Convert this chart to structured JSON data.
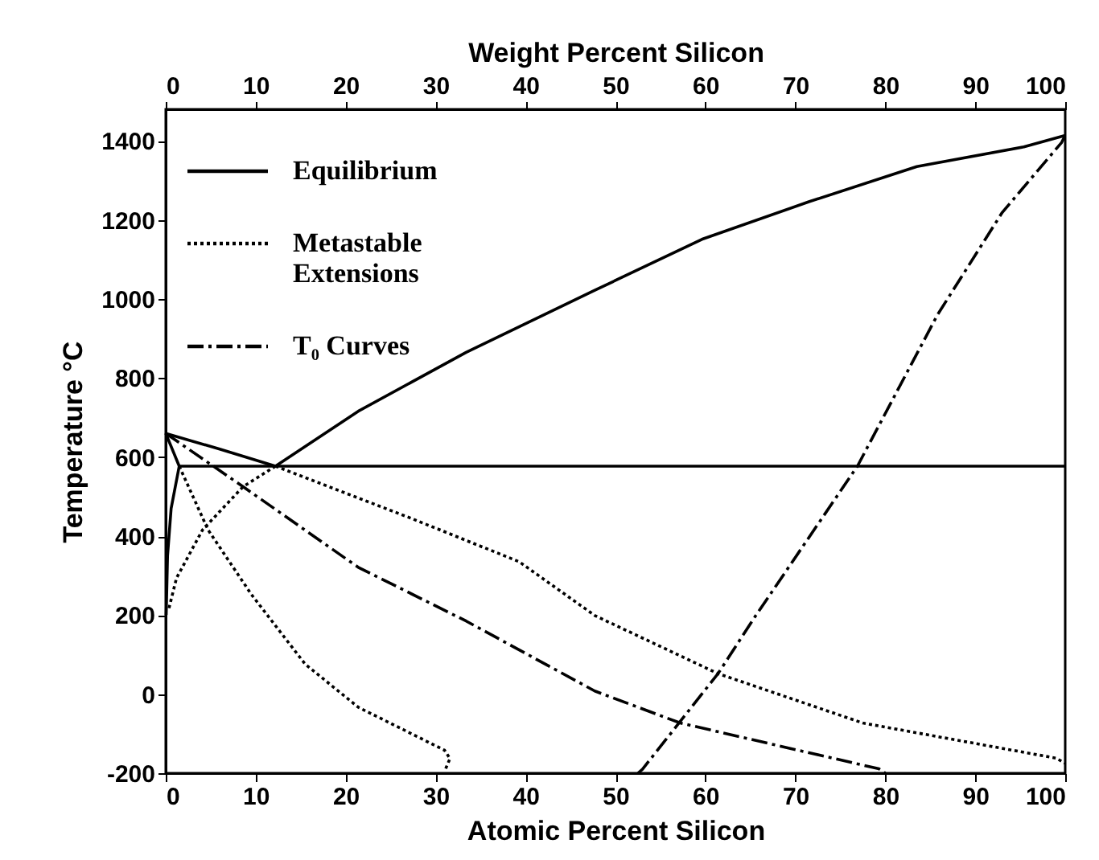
{
  "chart_data": {
    "type": "line",
    "xlabel": "Atomic Percent Silicon",
    "ylabel": "Temperature °C",
    "x2label": "Weight Percent Silicon",
    "xlim": [
      0,
      100
    ],
    "xticks": [
      0,
      10,
      20,
      30,
      40,
      50,
      60,
      70,
      80,
      90,
      100
    ],
    "x2lim": [
      0,
      100
    ],
    "x2ticks": [
      0,
      10,
      20,
      30,
      40,
      50,
      60,
      70,
      80,
      90,
      100
    ],
    "ylim": [
      -200,
      1480
    ],
    "yticks": [
      -200,
      0,
      200,
      400,
      600,
      800,
      {
        "value": 1000,
        "label": "1000"
      },
      {
        "value": 1200,
        "label": "1200"
      },
      {
        "value": 1400,
        "label": "1400"
      }
    ],
    "grid": false,
    "legend": "top left",
    "marker": "none",
    "series": [
      {
        "name": "Equilibrium",
        "color": "#000000",
        "line_style": "solid",
        "x": [
          0,
          6,
          12.2
        ],
        "values": [
          660,
          620,
          577
        ]
      },
      {
        "color": "#000000",
        "line_style": "solid",
        "x": [
          12.2,
          21.4,
          33.4,
          47.7,
          59.6,
          71.5,
          83.5,
          95.4,
          100
        ],
        "values": [
          577,
          716,
          865,
          1022,
          1151,
          1246,
          1335,
          1385,
          1414
        ]
      },
      {
        "color": "#000000",
        "line_style": "solid",
        "x": [
          1.5,
          100
        ],
        "values": [
          577,
          577
        ]
      },
      {
        "color": "#000000",
        "line_style": "solid",
        "x": [
          0,
          1.5
        ],
        "values": [
          660,
          577
        ]
      },
      {
        "color": "#000000",
        "line_style": "solid",
        "x": [
          1.5,
          0.6,
          0.2,
          0.05
        ],
        "values": [
          577,
          470,
          350,
          200
        ]
      },
      {
        "name": "Metastable Extensions",
        "color": "#000000",
        "line_style": "dotted",
        "x": [
          12.2,
          27.4,
          39.3,
          47.7,
          61.4,
          77.5,
          99,
          100
        ],
        "values": [
          577,
          444,
          335,
          199,
          52,
          -73,
          -162,
          -175
        ]
      },
      {
        "color": "#000000",
        "line_style": "dotted",
        "x": [
          12.2,
          8.6,
          4.1,
          1.2,
          0.3
        ],
        "values": [
          577,
          525,
          416,
          294,
          212
        ]
      },
      {
        "color": "#000000",
        "line_style": "dotted",
        "x": [
          1.5,
          4.7,
          9.5,
          15.5,
          21.4,
          27.4,
          31,
          31.6,
          31
        ],
        "values": [
          577,
          416,
          253,
          76,
          -33,
          -101,
          -142,
          -163,
          -195
        ]
      },
      {
        "name": "T₀ Curves",
        "color": "#000000",
        "line_style": "dashdot",
        "x": [
          0,
          8.6,
          21.4,
          33.4,
          47.7,
          57.2,
          79.3,
          80
        ],
        "values": [
          660,
          525,
          321,
          185,
          8,
          -73,
          -189,
          -200
        ]
      },
      {
        "color": "#000000",
        "line_style": "dashdot",
        "x": [
          52.5,
          53,
          61.4,
          65.6,
          76.9,
          85.8,
          93,
          99.6,
          100
        ],
        "values": [
          -200,
          -190,
          52,
          199,
          577,
          960,
          1219,
          1396,
          1414
        ]
      }
    ]
  }
}
